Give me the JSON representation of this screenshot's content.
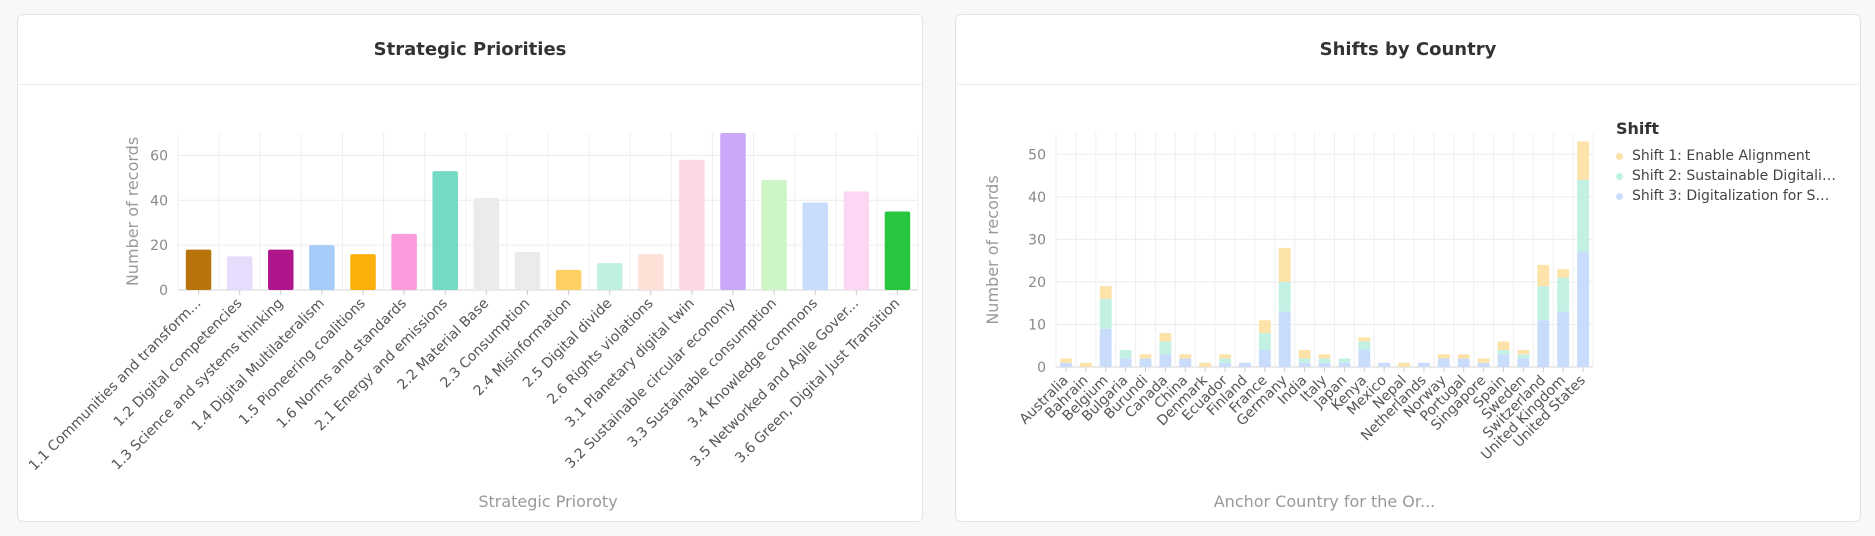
{
  "cards": [
    {
      "title": "Strategic Priorities"
    },
    {
      "title": "Shifts by Country"
    }
  ],
  "chart_data": [
    {
      "type": "bar",
      "title": "Strategic Priorities",
      "xlabel": "Strategic Prioroty",
      "ylabel": "Number of records",
      "ylim": [
        0,
        70
      ],
      "yticks": [
        0,
        20,
        40,
        60
      ],
      "grid": true,
      "categories": [
        "1.1 Communities and transform...",
        "1.2 Digital competencies",
        "1.3 Science and systems thinking",
        "1.4 Digital Multilateralism",
        "1.5 Pioneering coalitions",
        "1.6 Norms and standards",
        "2.1 Energy and emissions",
        "2.2 Material Base",
        "2.3 Consumption",
        "2.4 Misinformation",
        "2.5 Digital divide",
        "2.6 Rights violations",
        "3.1 Planetary digital twin",
        "3.2 Sustainable circular economy",
        "3.3 Sustainable consumption",
        "3.4 Knowledge commons",
        "3.5 Networked and Agile Gover...",
        "3.6 Green, Digital Just Transition"
      ],
      "values": [
        18,
        15,
        18,
        20,
        16,
        25,
        53,
        41,
        17,
        9,
        12,
        16,
        58,
        70,
        49,
        39,
        44,
        35
      ],
      "colors": [
        "#b8730a",
        "#e6dcfb",
        "#b0168c",
        "#a6cdfa",
        "#fcb00c",
        "#f99bdc",
        "#74dac4",
        "#ebebeb",
        "#ebebeb",
        "#fcd063",
        "#c0f0e2",
        "#fde0d6",
        "#fdd8e2",
        "#caa8f8",
        "#cef5c6",
        "#c9dcfb",
        "#fcd6f2",
        "#26c63e"
      ]
    },
    {
      "type": "bar",
      "stacked": true,
      "title": "Shifts by Country",
      "xlabel": "Anchor Country for the Or...",
      "ylabel": "Number of records",
      "ylim": [
        0,
        55
      ],
      "yticks": [
        0,
        10,
        20,
        30,
        40,
        50
      ],
      "grid": true,
      "legend": {
        "title": "Shift",
        "position": "right"
      },
      "categories": [
        "Australia",
        "Bahrain",
        "Belgium",
        "Bulgaria",
        "Burundi",
        "Canada",
        "China",
        "Denmark",
        "Ecuador",
        "Finland",
        "France",
        "Germany",
        "India",
        "Italy",
        "Japan",
        "Kenya",
        "Mexico",
        "Nepal",
        "Netherlands",
        "Norway",
        "Portugal",
        "Singapore",
        "Spain",
        "Sweden",
        "Switzerland",
        "United Kingdom",
        "United States"
      ],
      "series": [
        {
          "name": "Shift 3: Digitalization for Sus...",
          "color": "#c9dcfb",
          "values": [
            1,
            0,
            9,
            2,
            2,
            3,
            2,
            0,
            1,
            1,
            4,
            13,
            1,
            1,
            1,
            4,
            1,
            0,
            1,
            2,
            2,
            1,
            3,
            2,
            11,
            13,
            27
          ]
        },
        {
          "name": "Shift 2: Sustainable Digitaliz...",
          "color": "#c2f1e4",
          "values": [
            0,
            0,
            7,
            2,
            0,
            3,
            0,
            0,
            1,
            0,
            4,
            7,
            1,
            1,
            1,
            2,
            0,
            0,
            0,
            0,
            0,
            0,
            1,
            1,
            8,
            8,
            17
          ]
        },
        {
          "name": "Shift 1: Enable Alignment",
          "color": "#fde3a9",
          "values": [
            1,
            1,
            3,
            0,
            1,
            2,
            1,
            1,
            1,
            0,
            3,
            8,
            2,
            1,
            0,
            1,
            0,
            1,
            0,
            1,
            1,
            1,
            2,
            1,
            5,
            2,
            9
          ]
        }
      ]
    }
  ]
}
